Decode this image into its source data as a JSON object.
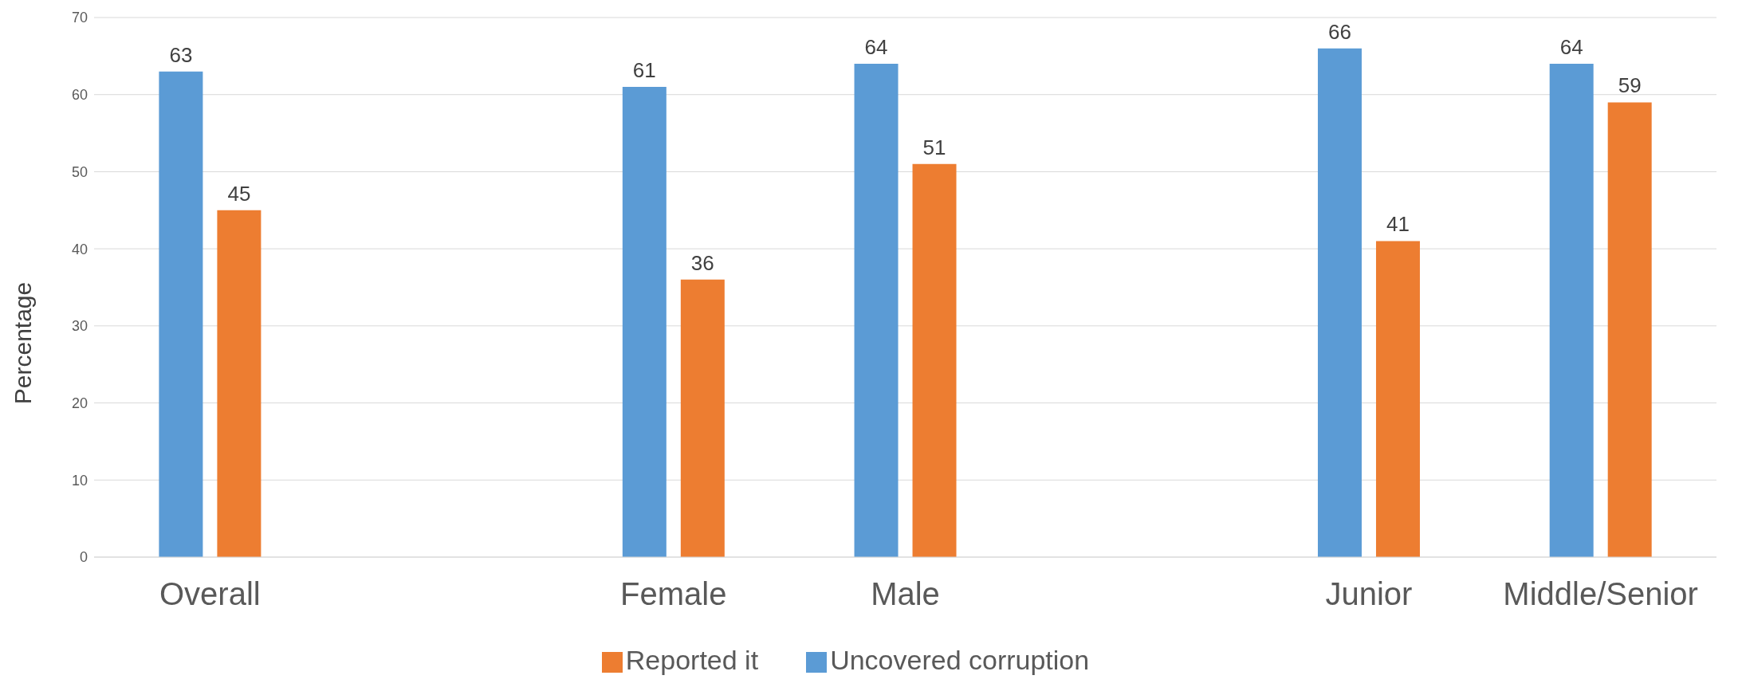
{
  "chart_data": {
    "type": "bar",
    "ylabel": "Percentage",
    "categories": [
      "Overall",
      null,
      "Female",
      "Male",
      null,
      "Junior",
      "Middle/Senior"
    ],
    "series": [
      {
        "name": "Uncovered corruption",
        "color": "#5b9bd5",
        "values": [
          63,
          null,
          61,
          64,
          null,
          66,
          64
        ]
      },
      {
        "name": "Reported it",
        "color": "#ed7d31",
        "values": [
          45,
          null,
          36,
          51,
          null,
          41,
          59
        ]
      }
    ],
    "ylim": [
      0,
      70
    ],
    "yticks": [
      0,
      10,
      20,
      30,
      40,
      50,
      60,
      70
    ],
    "grid": "y",
    "legend": "bottom",
    "data_labels": true
  }
}
